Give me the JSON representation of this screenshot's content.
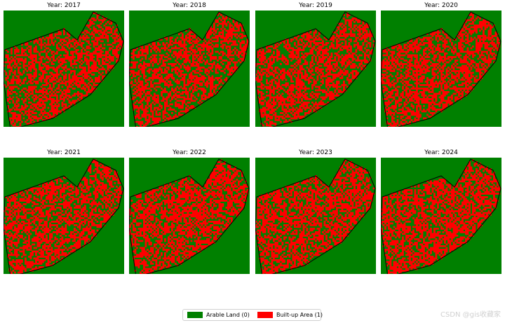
{
  "panels": [
    {
      "title": "Year: 2017"
    },
    {
      "title": "Year: 2018"
    },
    {
      "title": "Year: 2019"
    },
    {
      "title": "Year: 2020"
    },
    {
      "title": "Year: 2021"
    },
    {
      "title": "Year: 2022"
    },
    {
      "title": "Year: 2023"
    },
    {
      "title": "Year: 2024"
    }
  ],
  "legend": {
    "items": [
      {
        "label": "Arable Land (0)",
        "color": "#008000"
      },
      {
        "label": "Built-up Area (1)",
        "color": "#ff0000"
      }
    ]
  },
  "colors": {
    "arable": "#008000",
    "builtup": "#ff0000",
    "boundary": "#000000"
  },
  "watermark": "CSDN @gis收藏家"
}
